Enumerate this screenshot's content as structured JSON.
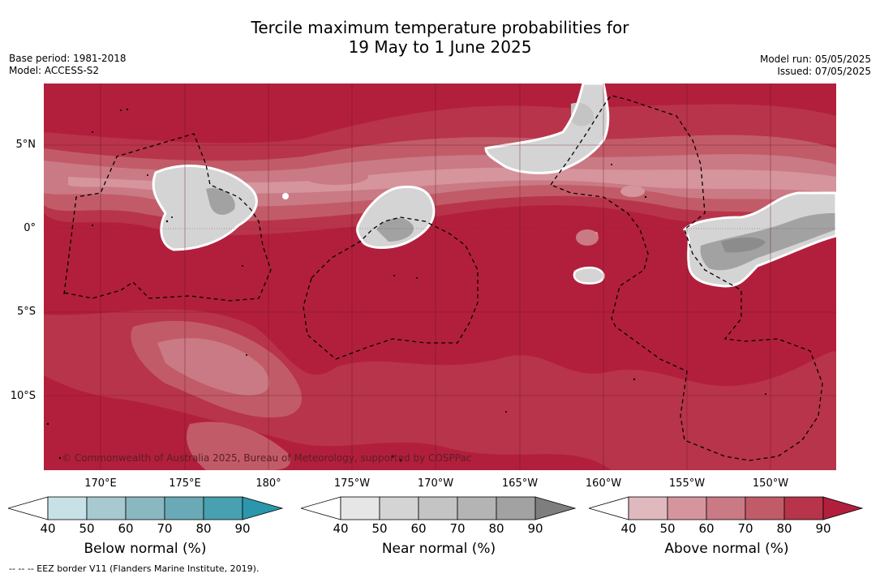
{
  "title_line1": "Tercile maximum temperature probabilities for",
  "title_line2": "19 May to 1 June 2025",
  "base_period": "Base period: 1981-2018",
  "model": "Model: ACCESS-S2",
  "model_run": "Model run: 05/05/2025",
  "issued": "Issued: 07/05/2025",
  "lat_labels": [
    "5°N",
    "0°",
    "5°S",
    "10°S"
  ],
  "lon_labels": [
    "170°E",
    "175°E",
    "180°",
    "175°W",
    "170°W",
    "165°W",
    "160°W",
    "155°W",
    "150°W"
  ],
  "copyright": "© Commonwealth of Australia 2025, Bureau of Meteorology, supported by COSPPac",
  "colorbars": [
    {
      "title": "Below normal (%)",
      "ticks": [
        "40",
        "50",
        "60",
        "70",
        "80",
        "90"
      ],
      "colors": [
        "#ffffff",
        "#c8e1e7",
        "#a7c9cf",
        "#8ab8c1",
        "#6aaab6",
        "#47a1b0",
        "#2a97ac"
      ]
    },
    {
      "title": "Near normal (%)",
      "ticks": [
        "40",
        "50",
        "60",
        "70",
        "80",
        "90"
      ],
      "colors": [
        "#ffffff",
        "#e6e6e6",
        "#d4d4d4",
        "#c4c4c4",
        "#b4b4b4",
        "#a2a2a2",
        "#7e7e7e"
      ]
    },
    {
      "title": "Above normal (%)",
      "ticks": [
        "40",
        "50",
        "60",
        "70",
        "80",
        "90"
      ],
      "colors": [
        "#ffffff",
        "#e0b9bf",
        "#d6959d",
        "#ca7a84",
        "#c25b68",
        "#b8344a",
        "#b21f3c"
      ]
    }
  ],
  "footer": "--  --  -- EEZ border V11 (Flanders Marine Institute, 2019).",
  "colors": {
    "above90": "#b21f3c",
    "above80": "#b8344a",
    "above70": "#c25b68",
    "above60": "#ca7a84",
    "above50": "#d6959d",
    "near50": "#e6e6e6",
    "near60": "#d4d4d4",
    "near70": "#c4c4c4",
    "near80": "#a2a2a2"
  }
}
